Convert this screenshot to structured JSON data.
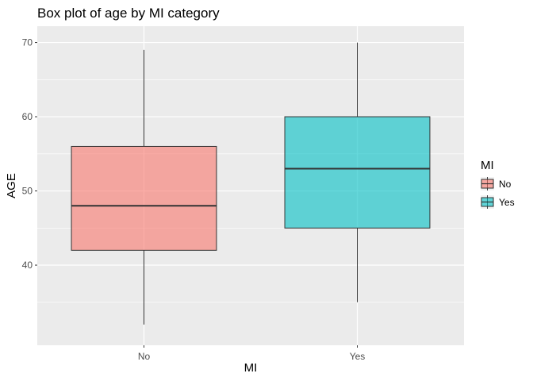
{
  "chart_data": {
    "type": "boxplot",
    "title": "Box plot of age by MI category",
    "xlabel": "MI",
    "ylabel": "AGE",
    "categories": [
      "No",
      "Yes"
    ],
    "ylim": [
      29.2,
      72.2
    ],
    "yticks": [
      40,
      50,
      60,
      70
    ],
    "grid": true,
    "legend": {
      "title": "MI",
      "position": "right",
      "entries": [
        "No",
        "Yes"
      ]
    },
    "colors": {
      "No": "#F8766D",
      "Yes": "#00BFC4",
      "panel": "#EBEBEB",
      "grid": "#FFFFFF"
    },
    "series": [
      {
        "name": "No",
        "min": 32,
        "q1": 42,
        "median": 48,
        "q3": 56,
        "max": 69
      },
      {
        "name": "Yes",
        "min": 35,
        "q1": 45,
        "median": 53,
        "q3": 60,
        "max": 70
      }
    ]
  }
}
